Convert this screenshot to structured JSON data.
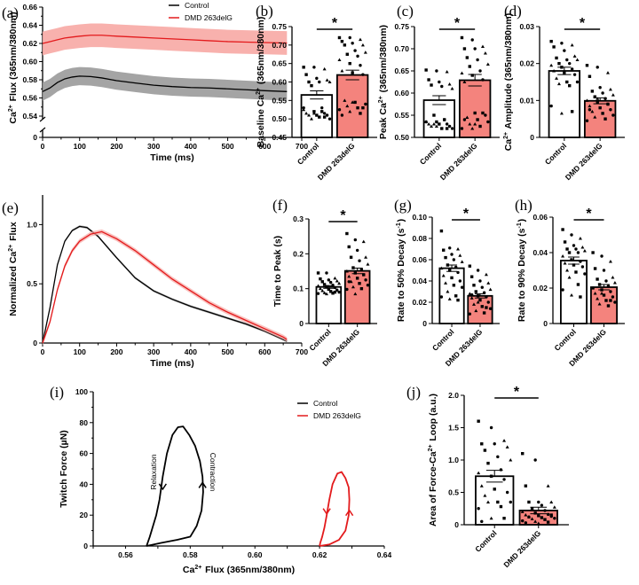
{
  "colors": {
    "control": "#000000",
    "dmd": "#e31a1c",
    "dmd_band": "#f7a8a4",
    "control_band": "#9a9a9a",
    "dmd_bar": "#f4837d"
  },
  "legend": {
    "control": "Control",
    "dmd": "DMD 263delG"
  },
  "chart_data": [
    {
      "id": "a",
      "panel_label": "(a)",
      "type": "line",
      "xlabel": "Time (ms)",
      "ylabel": "Ca2+ Flux (365nm/380nm)",
      "xlim": [
        0,
        700
      ],
      "ylim": [
        0.54,
        0.66
      ],
      "axis_break": true,
      "xticks": [
        "0",
        "100",
        "200",
        "300",
        "400",
        "500",
        "600",
        "700"
      ],
      "yticks": [
        "0",
        "0.54",
        "0.56",
        "0.58",
        "0.60",
        "0.62",
        "0.64",
        "0.66"
      ],
      "legend_position": "top-right",
      "series": [
        {
          "name": "Control",
          "x": [
            0,
            20,
            40,
            60,
            80,
            100,
            130,
            160,
            200,
            250,
            300,
            350,
            400,
            450,
            500,
            550,
            600,
            660
          ],
          "y": [
            0.567,
            0.571,
            0.577,
            0.581,
            0.583,
            0.584,
            0.5835,
            0.582,
            0.579,
            0.5765,
            0.574,
            0.5725,
            0.5715,
            0.571,
            0.57,
            0.569,
            0.568,
            0.567
          ],
          "band": 0.01
        },
        {
          "name": "DMD 263delG",
          "x": [
            0,
            20,
            40,
            60,
            80,
            100,
            130,
            160,
            200,
            250,
            300,
            350,
            400,
            450,
            500,
            550,
            600,
            660
          ],
          "y": [
            0.62,
            0.622,
            0.624,
            0.626,
            0.627,
            0.628,
            0.629,
            0.629,
            0.628,
            0.627,
            0.626,
            0.625,
            0.624,
            0.623,
            0.622,
            0.6215,
            0.621,
            0.6205
          ],
          "band": 0.013
        }
      ]
    },
    {
      "id": "b",
      "panel_label": "(b)",
      "type": "bar",
      "ylabel": "Baseline Ca2+ (365nm/380nm)",
      "categories": [
        "Control",
        "DMD 263delG"
      ],
      "ylim": [
        0.45,
        0.75
      ],
      "yticks": [
        "0.45",
        "0.50",
        "0.55",
        "0.60",
        "0.65",
        "0.70",
        "0.75"
      ],
      "values": [
        0.565,
        0.619
      ],
      "sem": [
        0.011,
        0.013
      ],
      "significance": "*",
      "points": [
        [
          0.64,
          0.64,
          0.635,
          0.62,
          0.61,
          0.605,
          0.6,
          0.6,
          0.6,
          0.59,
          0.53,
          0.525,
          0.52,
          0.515,
          0.515,
          0.51,
          0.51,
          0.51,
          0.505,
          0.5,
          0.5,
          0.52,
          0.53,
          0.515,
          0.505
        ],
        [
          0.72,
          0.72,
          0.715,
          0.71,
          0.705,
          0.7,
          0.7,
          0.685,
          0.68,
          0.675,
          0.67,
          0.66,
          0.65,
          0.645,
          0.63,
          0.625,
          0.62,
          0.55,
          0.545,
          0.54,
          0.535,
          0.53,
          0.525,
          0.52,
          0.515,
          0.51,
          0.545,
          0.53
        ]
      ]
    },
    {
      "id": "c",
      "panel_label": "(c)",
      "type": "bar",
      "ylabel": "Peak Ca2+ (365nm/380nm)",
      "categories": [
        "Control",
        "DMD 263delG"
      ],
      "ylim": [
        0.5,
        0.75
      ],
      "yticks": [
        "0.50",
        "0.55",
        "0.60",
        "0.65",
        "0.70",
        "0.75"
      ],
      "values": [
        0.584,
        0.629
      ],
      "sem": [
        0.01,
        0.013
      ],
      "significance": "*",
      "points": [
        [
          0.652,
          0.65,
          0.648,
          0.63,
          0.625,
          0.62,
          0.618,
          0.615,
          0.61,
          0.55,
          0.54,
          0.535,
          0.535,
          0.53,
          0.53,
          0.53,
          0.525,
          0.525,
          0.52,
          0.52,
          0.53,
          0.54,
          0.535,
          0.525,
          0.52
        ],
        [
          0.725,
          0.72,
          0.705,
          0.7,
          0.7,
          0.69,
          0.68,
          0.675,
          0.665,
          0.66,
          0.65,
          0.645,
          0.64,
          0.63,
          0.625,
          0.555,
          0.55,
          0.545,
          0.54,
          0.535,
          0.53,
          0.525,
          0.52,
          0.52,
          0.555,
          0.54,
          0.53
        ]
      ]
    },
    {
      "id": "d",
      "panel_label": "(d)",
      "type": "bar",
      "ylabel": "Ca2+ Amplitude (365nm/380nm)",
      "categories": [
        "Control",
        "DMD 263delG"
      ],
      "ylim": [
        0,
        0.03
      ],
      "yticks": [
        "0",
        "0.01",
        "0.02",
        "0.03"
      ],
      "values": [
        0.018,
        0.0099
      ],
      "sem": [
        0.001,
        0.0008
      ],
      "significance": "*",
      "points": [
        [
          0.026,
          0.0255,
          0.025,
          0.0245,
          0.0235,
          0.022,
          0.0215,
          0.021,
          0.021,
          0.02,
          0.02,
          0.0195,
          0.019,
          0.0185,
          0.018,
          0.0175,
          0.017,
          0.016,
          0.015,
          0.015,
          0.0145,
          0.014,
          0.0085,
          0.0065,
          0.007
        ],
        [
          0.0195,
          0.019,
          0.0175,
          0.0165,
          0.0135,
          0.013,
          0.0125,
          0.012,
          0.0115,
          0.011,
          0.0105,
          0.01,
          0.0095,
          0.009,
          0.0085,
          0.008,
          0.0075,
          0.007,
          0.0065,
          0.006,
          0.0055,
          0.005,
          0.0045,
          0.0105,
          0.009,
          0.0075
        ]
      ]
    },
    {
      "id": "e",
      "panel_label": "(e)",
      "type": "line",
      "xlabel": "Time (ms)",
      "ylabel": "Normalized Ca2+ Flux",
      "xlim": [
        0,
        700
      ],
      "ylim": [
        0,
        1.25
      ],
      "xticks": [
        "0",
        "100",
        "200",
        "300",
        "400",
        "500",
        "600",
        "700"
      ],
      "yticks": [
        "0",
        "0.5",
        "1.0"
      ],
      "series": [
        {
          "name": "Control",
          "x": [
            0,
            20,
            40,
            60,
            80,
            100,
            120,
            150,
            200,
            250,
            300,
            350,
            400,
            450,
            500,
            550,
            600,
            650,
            660
          ],
          "y": [
            0,
            0.3,
            0.66,
            0.86,
            0.95,
            0.985,
            0.975,
            0.9,
            0.72,
            0.55,
            0.44,
            0.37,
            0.31,
            0.26,
            0.21,
            0.16,
            0.1,
            0.03,
            0.015
          ],
          "band": 0.01
        },
        {
          "name": "DMD 263delG",
          "x": [
            0,
            20,
            40,
            60,
            80,
            100,
            130,
            160,
            200,
            250,
            300,
            350,
            400,
            450,
            500,
            550,
            600,
            650,
            660
          ],
          "y": [
            0,
            0.18,
            0.45,
            0.65,
            0.78,
            0.86,
            0.92,
            0.94,
            0.88,
            0.78,
            0.66,
            0.54,
            0.44,
            0.34,
            0.26,
            0.19,
            0.12,
            0.05,
            0.03
          ],
          "band": 0.02
        }
      ]
    },
    {
      "id": "f",
      "panel_label": "(f)",
      "type": "bar",
      "ylabel": "Time to Peak (s)",
      "categories": [
        "Control",
        "DMD 263delG"
      ],
      "ylim": [
        0,
        0.3
      ],
      "yticks": [
        "0",
        "0.1",
        "0.2",
        "0.3"
      ],
      "values": [
        0.105,
        0.151
      ],
      "sem": [
        0.004,
        0.008
      ],
      "significance": "*",
      "points": [
        [
          0.145,
          0.145,
          0.13,
          0.128,
          0.125,
          0.122,
          0.12,
          0.118,
          0.115,
          0.112,
          0.11,
          0.108,
          0.105,
          0.103,
          0.1,
          0.098,
          0.096,
          0.094,
          0.092,
          0.09,
          0.088,
          0.087,
          0.086,
          0.085,
          0.09
        ],
        [
          0.258,
          0.24,
          0.235,
          0.22,
          0.21,
          0.19,
          0.19,
          0.18,
          0.17,
          0.16,
          0.155,
          0.15,
          0.145,
          0.14,
          0.135,
          0.13,
          0.125,
          0.12,
          0.115,
          0.11,
          0.105,
          0.1,
          0.098,
          0.085,
          0.14,
          0.12
        ]
      ]
    },
    {
      "id": "g",
      "panel_label": "(g)",
      "type": "bar",
      "ylabel": "Rate to 50% Decay (s-1)",
      "categories": [
        "Control",
        "DMD 263delG"
      ],
      "ylim": [
        0,
        0.1
      ],
      "yticks": [
        "0",
        "0.02",
        "0.04",
        "0.06",
        "0.08",
        "0.10"
      ],
      "values": [
        0.052,
        0.026
      ],
      "sem": [
        0.003,
        0.002
      ],
      "significance": "*",
      "points": [
        [
          0.087,
          0.071,
          0.07,
          0.069,
          0.065,
          0.064,
          0.062,
          0.06,
          0.058,
          0.055,
          0.053,
          0.052,
          0.05,
          0.048,
          0.045,
          0.043,
          0.04,
          0.038,
          0.036,
          0.034,
          0.03,
          0.026,
          0.025,
          0.023,
          0.022
        ],
        [
          0.054,
          0.05,
          0.046,
          0.044,
          0.04,
          0.038,
          0.036,
          0.034,
          0.032,
          0.03,
          0.029,
          0.028,
          0.026,
          0.025,
          0.024,
          0.022,
          0.02,
          0.018,
          0.016,
          0.014,
          0.012,
          0.01,
          0.009,
          0.02,
          0.015,
          0.027
        ]
      ]
    },
    {
      "id": "h",
      "panel_label": "(h)",
      "type": "bar",
      "ylabel": "Rate to 90% Decay (s-1)",
      "categories": [
        "Control",
        "DMD 263delG"
      ],
      "ylim": [
        0,
        0.06
      ],
      "yticks": [
        "0",
        "0.02",
        "0.04",
        "0.06"
      ],
      "values": [
        0.0355,
        0.0205
      ],
      "sem": [
        0.002,
        0.0015
      ],
      "significance": "*",
      "points": [
        [
          0.053,
          0.05,
          0.048,
          0.046,
          0.044,
          0.043,
          0.042,
          0.042,
          0.041,
          0.04,
          0.04,
          0.038,
          0.036,
          0.035,
          0.034,
          0.033,
          0.032,
          0.03,
          0.029,
          0.028,
          0.026,
          0.022,
          0.019,
          0.016,
          0.015
        ],
        [
          0.04,
          0.038,
          0.035,
          0.031,
          0.03,
          0.026,
          0.025,
          0.024,
          0.023,
          0.022,
          0.021,
          0.02,
          0.019,
          0.018,
          0.017,
          0.016,
          0.015,
          0.014,
          0.013,
          0.012,
          0.011,
          0.01,
          0.02,
          0.017,
          0.013
        ]
      ]
    },
    {
      "id": "i",
      "panel_label": "(i)",
      "type": "line",
      "xlabel": "Ca2+ Flux (365nm/380nm)",
      "ylabel": "Twitch Force (µN)",
      "xlim": [
        0.55,
        0.64
      ],
      "ylim": [
        0,
        100
      ],
      "xticks": [
        "0.56",
        "0.58",
        "0.60",
        "0.62",
        "0.64"
      ],
      "yticks": [
        "0",
        "20",
        "40",
        "60",
        "80",
        "100"
      ],
      "legend_position": "top-right",
      "annotations": [
        "Relaxation",
        "Contraction"
      ],
      "series": [
        {
          "name": "Control",
          "x": [
            0.5665,
            0.571,
            0.576,
            0.58,
            0.582,
            0.5835,
            0.584,
            0.5838,
            0.583,
            0.5815,
            0.5797,
            0.5778,
            0.5762,
            0.5745,
            0.5728,
            0.5715,
            0.5705,
            0.5695,
            0.5685,
            0.5675,
            0.5665
          ],
          "y": [
            0,
            2,
            4,
            6,
            13,
            23,
            35,
            45,
            55,
            65,
            72,
            77.5,
            77,
            72,
            60,
            45,
            30,
            20,
            13,
            6,
            0
          ]
        },
        {
          "name": "DMD 263delG",
          "x": [
            0.62,
            0.623,
            0.626,
            0.628,
            0.629,
            0.6292,
            0.629,
            0.628,
            0.6268,
            0.6255,
            0.624,
            0.623,
            0.6222,
            0.6215,
            0.6208,
            0.6202,
            0.62
          ],
          "y": [
            0,
            1,
            4,
            10,
            20,
            30,
            38,
            44,
            48,
            47,
            40,
            30,
            20,
            12,
            6,
            2,
            0
          ]
        }
      ]
    },
    {
      "id": "j",
      "panel_label": "(j)",
      "type": "bar",
      "ylabel": "Area of Force-Ca2+ Loop (a.u.)",
      "categories": [
        "Control",
        "DMD 263delG"
      ],
      "ylim": [
        0,
        2.0
      ],
      "yticks": [
        "0",
        "0.5",
        "1.0",
        "1.5",
        "2.0"
      ],
      "values": [
        0.75,
        0.22
      ],
      "sem": [
        0.09,
        0.05
      ],
      "significance": "*",
      "points": [
        [
          1.6,
          1.5,
          1.3,
          1.25,
          1.25,
          1.2,
          1.15,
          1.05,
          1.0,
          0.95,
          0.85,
          0.8,
          0.75,
          0.7,
          0.6,
          0.55,
          0.5,
          0.45,
          0.35,
          0.35,
          0.35,
          0.28,
          0.25,
          0.1,
          0.1,
          0.05
        ],
        [
          1.1,
          1.0,
          0.6,
          0.6,
          0.35,
          0.35,
          0.35,
          0.3,
          0.27,
          0.25,
          0.22,
          0.2,
          0.18,
          0.16,
          0.15,
          0.14,
          0.13,
          0.12,
          0.11,
          0.1,
          0.09,
          0.08,
          0.06,
          0.05,
          0.04,
          0.03,
          0.02,
          0.15,
          0.12
        ]
      ]
    }
  ]
}
